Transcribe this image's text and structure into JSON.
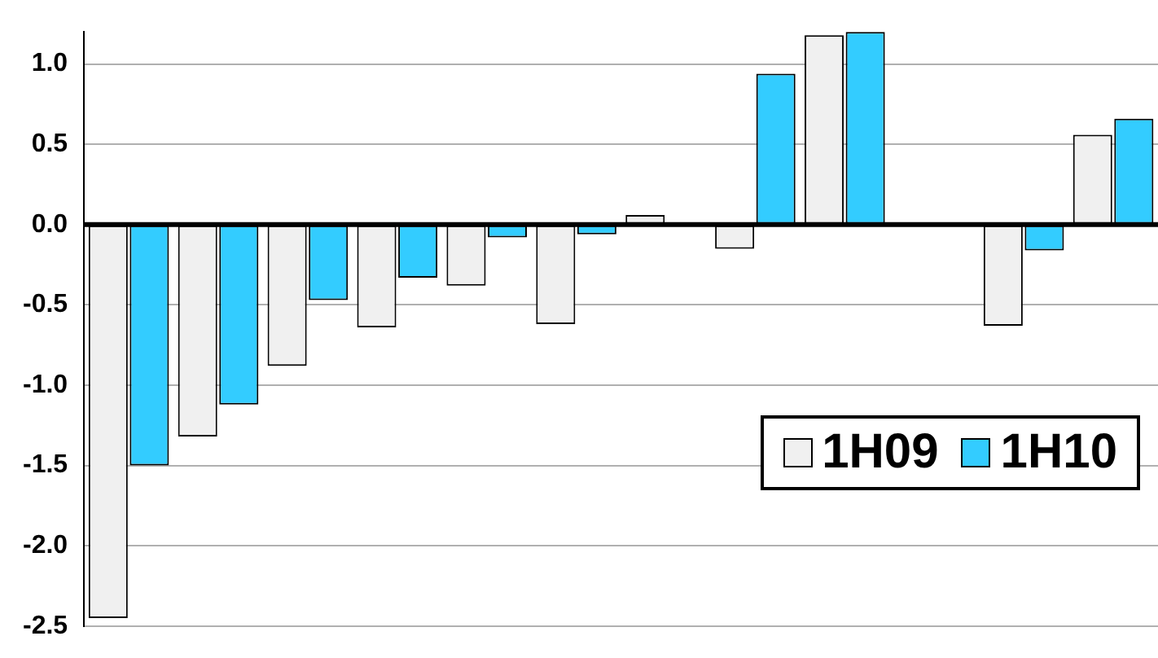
{
  "chart_data": {
    "type": "bar",
    "categories": [
      null,
      null,
      null,
      null,
      null,
      null,
      null,
      null,
      null,
      null,
      null,
      null
    ],
    "series": [
      {
        "name": "1H09",
        "color": "#f0f0f0",
        "values": [
          -2.45,
          -1.32,
          -0.88,
          -0.64,
          -0.38,
          -0.62,
          0.06,
          -0.15,
          1.18,
          null,
          -0.63,
          0.56
        ]
      },
      {
        "name": "1H10",
        "color": "#33ccff",
        "values": [
          -1.5,
          -1.12,
          -0.47,
          -0.33,
          -0.08,
          -0.06,
          null,
          0.94,
          1.2,
          null,
          -0.16,
          0.66
        ]
      }
    ],
    "ylim": [
      -2.5,
      1.2
    ],
    "yticks": [
      {
        "value": -2.5,
        "label": "-2.5"
      },
      {
        "value": -2,
        "label": "-2.0"
      },
      {
        "value": -1.5,
        "label": "-1.5"
      },
      {
        "value": -1,
        "label": "-1.0"
      },
      {
        "value": -0.5,
        "label": "-0.5"
      },
      {
        "value": 0,
        "label": "0.0"
      },
      {
        "value": 0.5,
        "label": "0.5"
      },
      {
        "value": 1,
        "label": "1.0"
      }
    ],
    "grid": "y",
    "legend": "bottom right",
    "tick_labels": "y"
  }
}
